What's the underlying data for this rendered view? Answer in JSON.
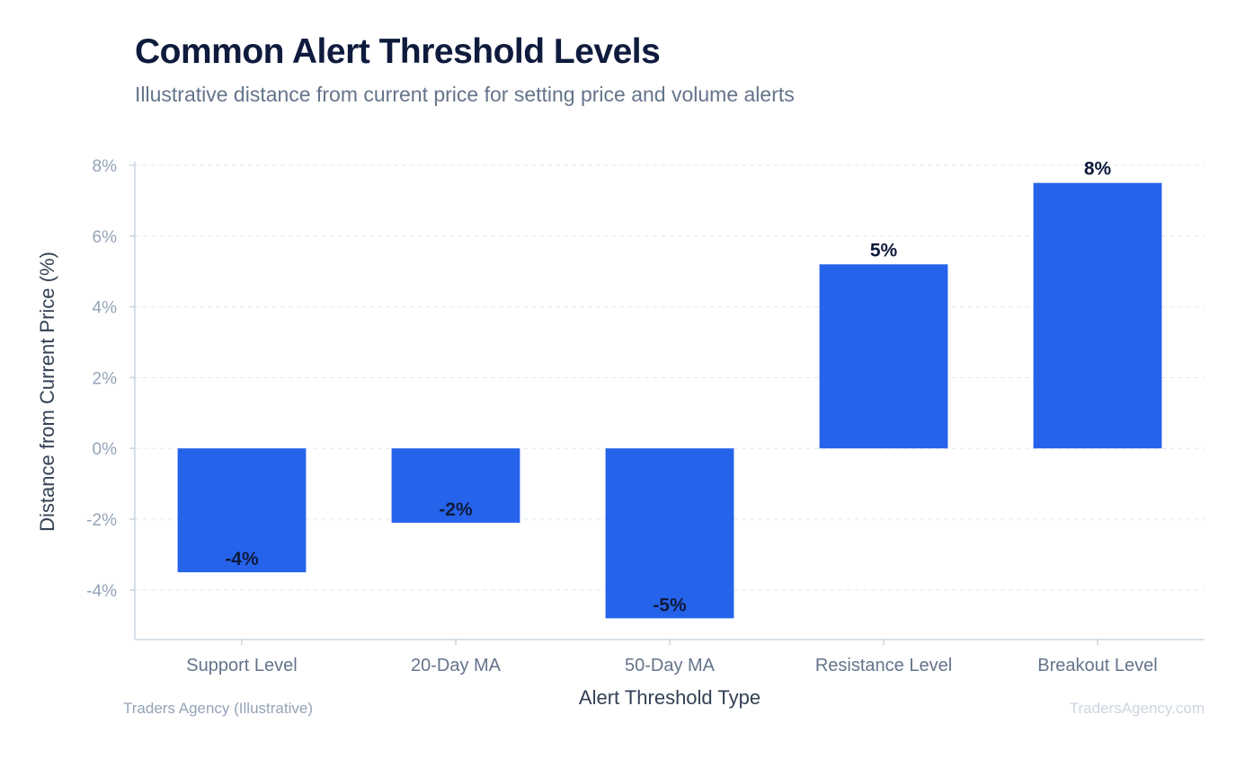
{
  "title": "Common Alert Threshold Levels",
  "subtitle": "Illustrative distance from current price for setting price and volume alerts",
  "footer": {
    "source": "Traders Agency (Illustrative)",
    "watermark": "TradersAgency.com"
  },
  "colors": {
    "bar": "#2563eb",
    "grid": "#e2e8f0",
    "axis": "#cbd5e1",
    "tick_text": "#94a3b8",
    "category_text": "#64748b",
    "label_text": "#0f1b3d",
    "axis_title": "#334155"
  },
  "chart_data": {
    "type": "bar",
    "categories": [
      "Support Level",
      "20-Day MA",
      "50-Day MA",
      "Resistance Level",
      "Breakout Level"
    ],
    "values": [
      -3.5,
      -2.1,
      -4.8,
      5.2,
      7.5
    ],
    "data_labels": [
      "-4%",
      "-2%",
      "-5%",
      "5%",
      "8%"
    ],
    "xlabel": "Alert Threshold Type",
    "ylabel": "Distance from Current Price (%)",
    "ylim": [
      -5.4,
      8.1
    ],
    "yticks": [
      -4,
      -2,
      0,
      2,
      4,
      6,
      8
    ],
    "ytick_labels": [
      "-4%",
      "-2%",
      "0%",
      "2%",
      "4%",
      "6%",
      "8%"
    ],
    "grid": true,
    "legend": "none"
  }
}
